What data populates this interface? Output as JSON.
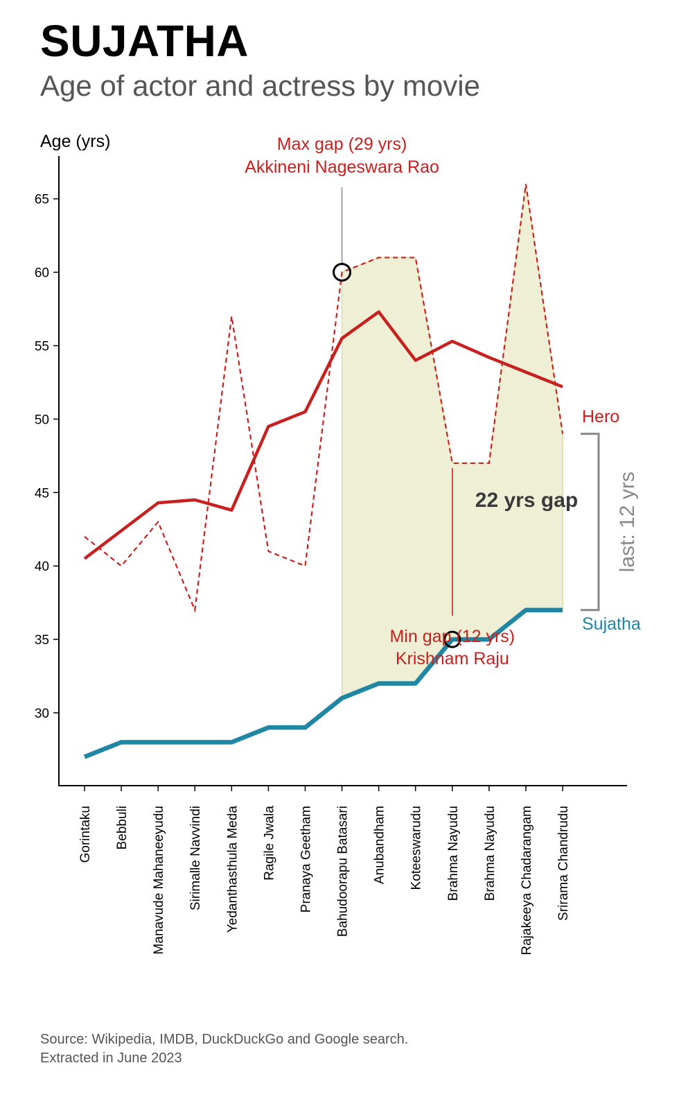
{
  "title": "SUJATHA",
  "subtitle": "Age of actor and actress by movie",
  "footer": {
    "line1": "Source: Wikipedia, IMDB, DuckDuckGo and Google search.",
    "line2": "Extracted in June 2023"
  },
  "colors": {
    "hero": "#c8201e",
    "sujatha": "#1f86a4",
    "fill": "#efefd6",
    "bracket": "#888888",
    "gap_text": "#3a3a3a"
  },
  "annotations": {
    "max_gap_line1": "Max gap (29 yrs)",
    "max_gap_line2": "Akkineni Nageswara Rao",
    "min_gap_line1": "Min gap (12 yrs)",
    "min_gap_line2": "Krishnam Raju",
    "gap_label": "22 yrs gap",
    "last_label": "last: 12 yrs",
    "hero_label": "Hero",
    "sujatha_label": "Sujatha"
  },
  "chart_data": {
    "type": "line",
    "title": "SUJATHA",
    "subtitle": "Age of actor and actress by movie",
    "ylabel": "Age (yrs)",
    "xlabel": "",
    "ylim": [
      25,
      68
    ],
    "yticks": [
      30,
      35,
      40,
      45,
      50,
      55,
      60,
      65
    ],
    "categories": [
      "Gorintaku",
      "Bebbuli",
      "Manavude Mahaneeyudu",
      "Sirimalle Navvindi",
      "Yedanthasthula Meda",
      "Ragile Jwala",
      "Pranaya Geetham",
      "Bahudoorapu Batasari",
      "Anubandham",
      "Koteeswarudu",
      "Brahma Nayudu",
      "Brahma Nayudu",
      "Rajakeeya Chadarangam",
      "Srirama Chandrudu"
    ],
    "series": [
      {
        "name": "Hero",
        "style": "dashed",
        "values": [
          42,
          40,
          43,
          37,
          57,
          41,
          40,
          60,
          61,
          61,
          47,
          47,
          66,
          49
        ]
      },
      {
        "name": "Sujatha",
        "style": "solid",
        "values": [
          27,
          28,
          28,
          28,
          28,
          29,
          29,
          31,
          32,
          32,
          35,
          35,
          37,
          37
        ]
      }
    ],
    "hero_trend": [
      40.5,
      42.4,
      44.3,
      44.5,
      43.8,
      49.5,
      50.5,
      55.5,
      57.3,
      54,
      55.3,
      54.2,
      53.2,
      52.2
    ],
    "shaded_from_index": 7,
    "max_gap_index": 7,
    "min_gap_index": 10,
    "grid": false
  }
}
